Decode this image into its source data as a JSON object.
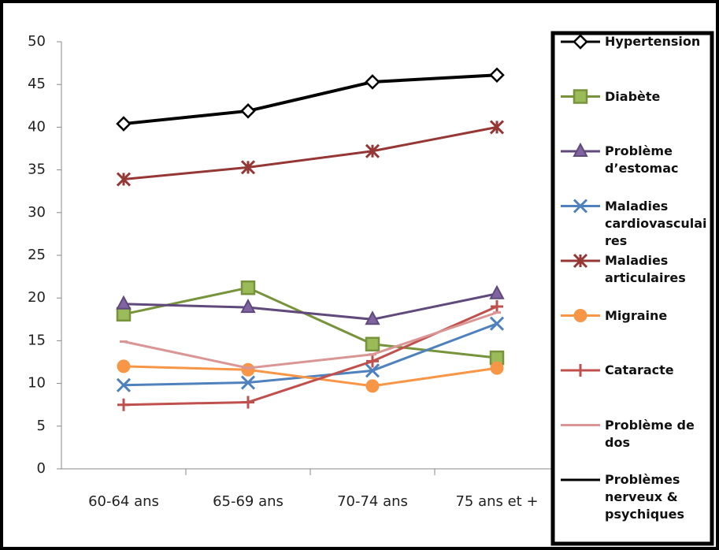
{
  "chart_data": {
    "type": "line",
    "categories": [
      "60-64 ans",
      "65-69 ans",
      "70-74 ans",
      "75 ans et +"
    ],
    "ylim": [
      0,
      50
    ],
    "yticks": [
      0,
      5,
      10,
      15,
      20,
      25,
      30,
      35,
      40,
      45,
      50
    ],
    "grid": false,
    "legend": "right",
    "series": [
      {
        "name": "Hypertension",
        "color": "#000000",
        "marker": "diamond",
        "values": [
          40.4,
          41.9,
          45.3,
          46.1
        ]
      },
      {
        "name": "Diabète",
        "color": "#77933c",
        "marker": "square",
        "values": [
          18.1,
          21.2,
          14.6,
          13.0
        ]
      },
      {
        "name": "Problème d’estomac",
        "color": "#604a7b",
        "marker": "triangle",
        "values": [
          19.3,
          18.9,
          17.5,
          20.5
        ]
      },
      {
        "name": "Maladies cardiovasculaires",
        "color": "#4f81bd",
        "marker": "x",
        "values": [
          9.8,
          10.1,
          11.5,
          17.0
        ]
      },
      {
        "name": "Maladies articulaires",
        "color": "#953735",
        "marker": "star",
        "values": [
          33.9,
          35.3,
          37.2,
          40.0
        ]
      },
      {
        "name": "Migraine",
        "color": "#f79646",
        "marker": "circle",
        "values": [
          12.0,
          11.6,
          9.7,
          11.8
        ]
      },
      {
        "name": "Cataracte",
        "color": "#c0504d",
        "marker": "plus",
        "values": [
          7.5,
          7.8,
          12.6,
          19.0
        ]
      },
      {
        "name": "Problème de dos",
        "color": "#d99694",
        "marker": "dash",
        "values": [
          14.9,
          11.8,
          13.4,
          18.3
        ]
      },
      {
        "name": "Problèmes nerveux & psychiques",
        "color": "#000000",
        "marker": "dash",
        "values": [
          null,
          null,
          null,
          null
        ]
      }
    ]
  }
}
